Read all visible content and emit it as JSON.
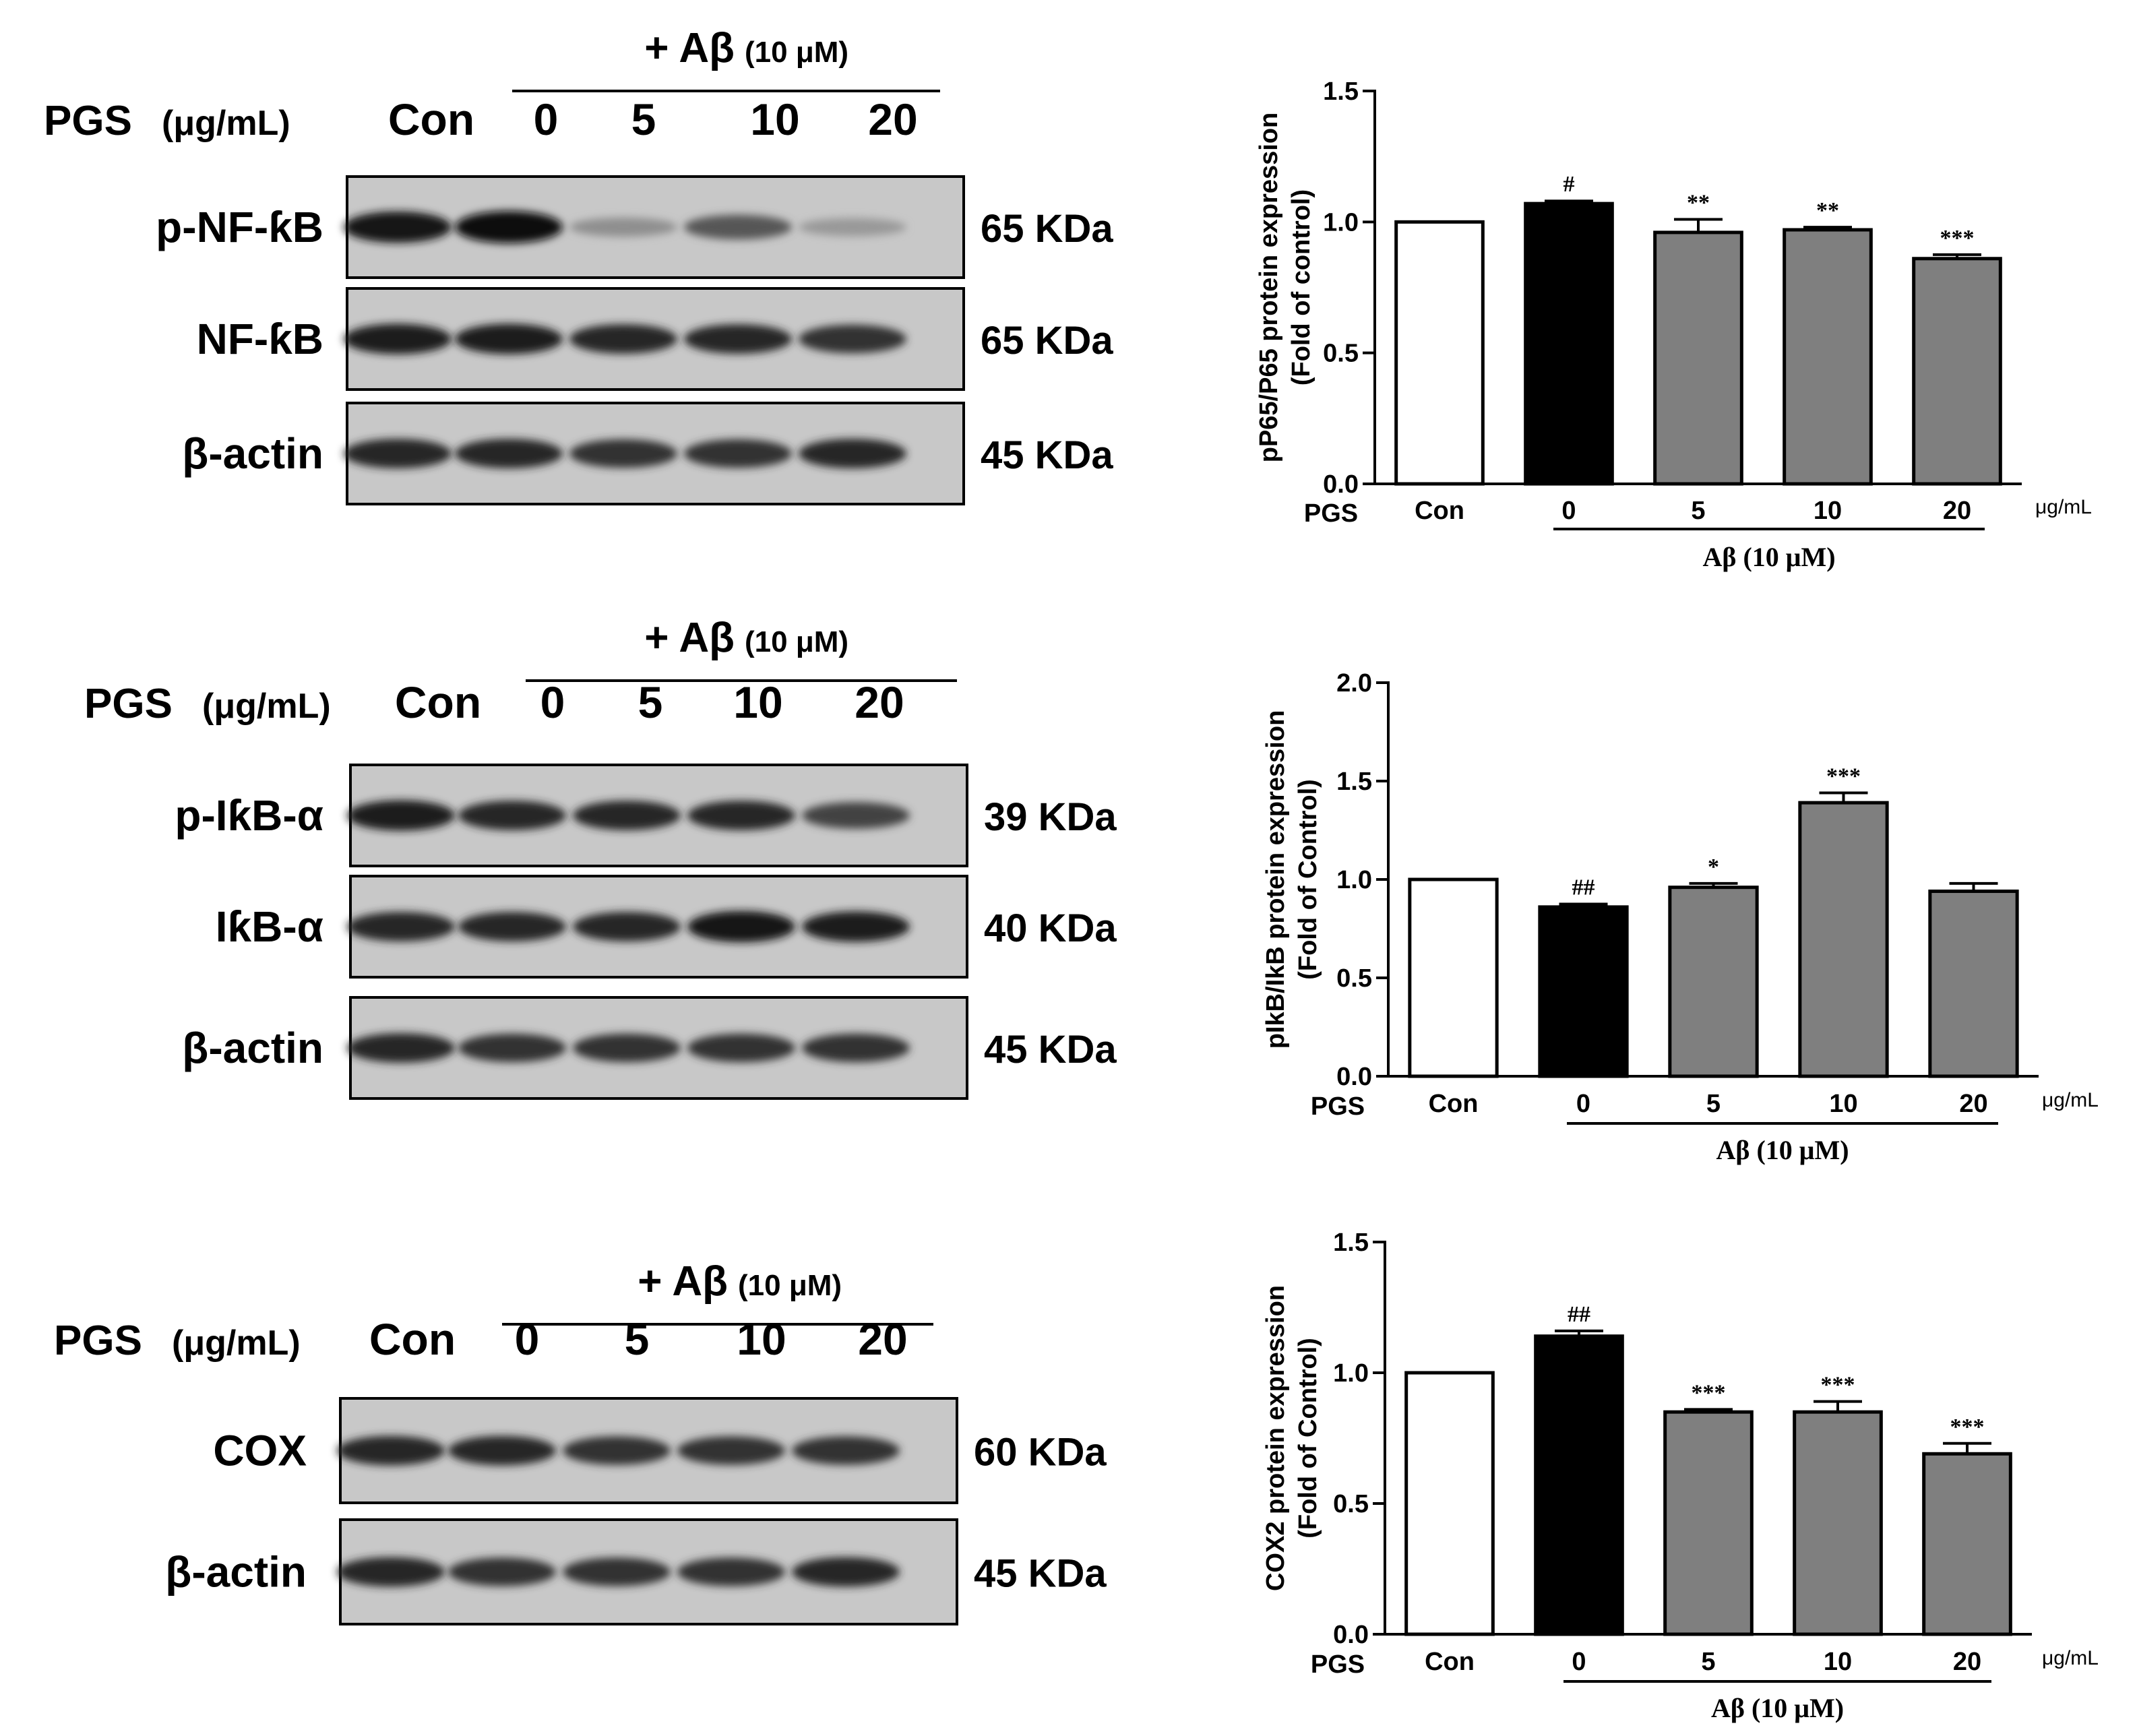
{
  "blots": [
    {
      "ab_main": "+ Aβ",
      "ab_conc": "(10 μM)",
      "pgs_label": "PGS",
      "pgs_unit": "(μg/mL)",
      "lanes": [
        "Con",
        "0",
        "5",
        "10",
        "20"
      ],
      "bands": [
        {
          "name": "p-NF-ƙB",
          "size": "65 KDa",
          "intensity": [
            0.95,
            1.0,
            0.3,
            0.6,
            0.25
          ]
        },
        {
          "name": "NF-ƙB",
          "size": "65 KDa",
          "intensity": [
            0.9,
            0.9,
            0.85,
            0.85,
            0.8
          ]
        },
        {
          "name": "β-actin",
          "size": "45 KDa",
          "intensity": [
            0.85,
            0.85,
            0.8,
            0.8,
            0.85
          ]
        }
      ]
    },
    {
      "ab_main": "+ Aβ",
      "ab_conc": "(10 μM)",
      "pgs_label": "PGS",
      "pgs_unit": "(μg/mL)",
      "lanes": [
        "Con",
        "0",
        "5",
        "10",
        "20"
      ],
      "bands": [
        {
          "name": "p-IƙB-α",
          "size": "39 KDa",
          "intensity": [
            0.9,
            0.85,
            0.85,
            0.85,
            0.7
          ]
        },
        {
          "name": "IƙB-α",
          "size": "40 KDa",
          "intensity": [
            0.85,
            0.85,
            0.85,
            0.95,
            0.9
          ]
        },
        {
          "name": "β-actin",
          "size": "45 KDa",
          "intensity": [
            0.85,
            0.8,
            0.8,
            0.8,
            0.8
          ]
        }
      ]
    },
    {
      "ab_main": "+ Aβ",
      "ab_conc": "(10 μM)",
      "pgs_label": "PGS",
      "pgs_unit": "(μg/mL)",
      "lanes": [
        "Con",
        "0",
        "5",
        "10",
        "20"
      ],
      "bands": [
        {
          "name": "COX",
          "size": "60 KDa",
          "intensity": [
            0.85,
            0.85,
            0.8,
            0.8,
            0.8
          ]
        },
        {
          "name": "β-actin",
          "size": "45 KDa",
          "intensity": [
            0.85,
            0.8,
            0.8,
            0.8,
            0.85
          ]
        }
      ]
    }
  ],
  "chart_data": [
    {
      "type": "bar",
      "ylabel": [
        "pP65/P65 protein expression",
        "(Fold of control)"
      ],
      "yticks": [
        "0.0",
        "0.5",
        "1.0",
        "1.5"
      ],
      "ylim": [
        0,
        1.5
      ],
      "x_row_label": "PGS",
      "unit": "μg/mL",
      "categories": [
        "Con",
        "0",
        "5",
        "10",
        "20"
      ],
      "values": [
        1.0,
        1.07,
        0.96,
        0.97,
        0.86
      ],
      "errors": [
        0.0,
        0.01,
        0.05,
        0.01,
        0.015
      ],
      "annotations": [
        "",
        "#",
        "**",
        "**",
        "***"
      ],
      "bar_colors": [
        "#ffffff",
        "#000000",
        "#7f7f7f",
        "#7f7f7f",
        "#7f7f7f"
      ],
      "group_label": "Aβ (10 μM)"
    },
    {
      "type": "bar",
      "ylabel": [
        "pIkB/IkB protein expression",
        "(Fold of Control)"
      ],
      "yticks": [
        "0.0",
        "0.5",
        "1.0",
        "1.5",
        "2.0"
      ],
      "ylim": [
        0,
        2.0
      ],
      "x_row_label": "PGS",
      "unit": "μg/mL",
      "categories": [
        "Con",
        "0",
        "5",
        "10",
        "20"
      ],
      "values": [
        1.0,
        0.86,
        0.96,
        1.39,
        0.94
      ],
      "errors": [
        0.0,
        0.015,
        0.02,
        0.05,
        0.04
      ],
      "annotations": [
        "",
        "##",
        "*",
        "***",
        ""
      ],
      "bar_colors": [
        "#ffffff",
        "#000000",
        "#7f7f7f",
        "#7f7f7f",
        "#7f7f7f"
      ],
      "group_label": "Aβ (10 μM)"
    },
    {
      "type": "bar",
      "ylabel": [
        "COX2 protein expression",
        "(Fold of Control)"
      ],
      "yticks": [
        "0.0",
        "0.5",
        "1.0",
        "1.5"
      ],
      "ylim": [
        0,
        1.5
      ],
      "x_row_label": "PGS",
      "unit": "μg/mL",
      "categories": [
        "Con",
        "0",
        "5",
        "10",
        "20"
      ],
      "values": [
        1.0,
        1.14,
        0.85,
        0.85,
        0.69
      ],
      "errors": [
        0.0,
        0.02,
        0.01,
        0.04,
        0.04
      ],
      "annotations": [
        "",
        "##",
        "***",
        "***",
        "***"
      ],
      "bar_colors": [
        "#ffffff",
        "#000000",
        "#7f7f7f",
        "#7f7f7f",
        "#7f7f7f"
      ],
      "group_label": "Aβ (10 μM)"
    }
  ]
}
